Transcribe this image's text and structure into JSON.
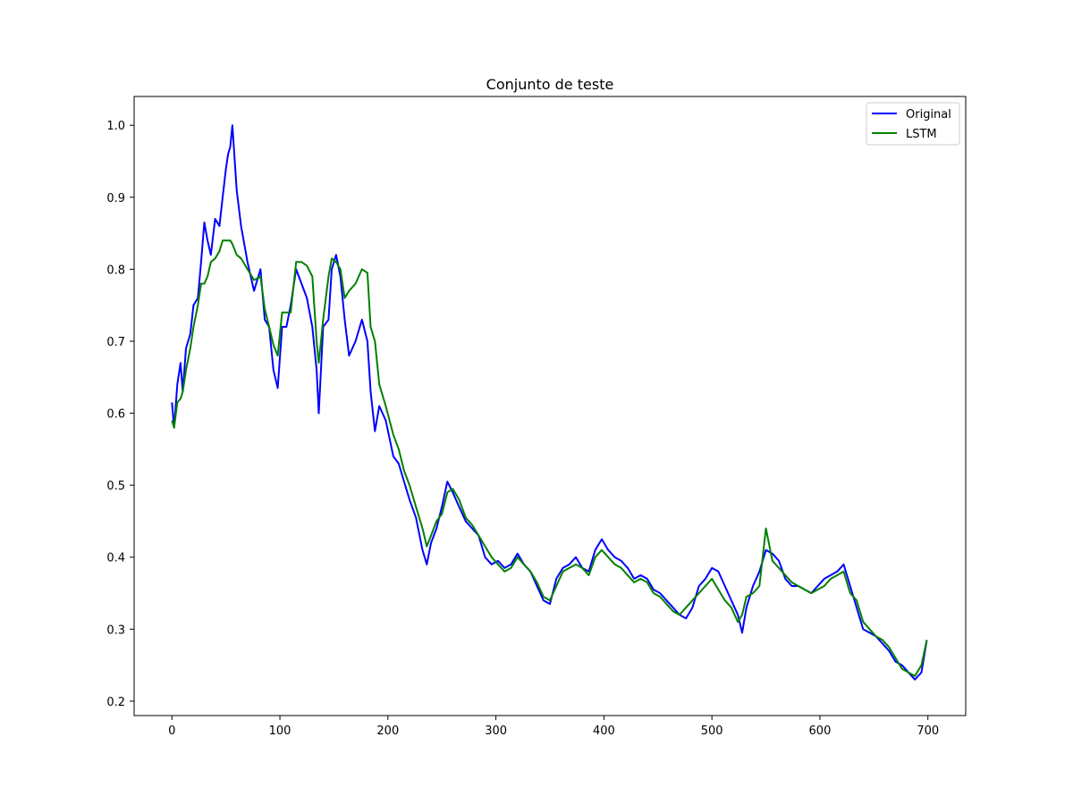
{
  "chart_data": {
    "type": "line",
    "title": "Conjunto de teste",
    "xlabel": "",
    "ylabel": "",
    "xlim": [
      -35,
      735
    ],
    "ylim": [
      0.18,
      1.04
    ],
    "xticks": [
      0,
      100,
      200,
      300,
      400,
      500,
      600,
      700
    ],
    "yticks": [
      0.2,
      0.3,
      0.4,
      0.5,
      0.6,
      0.7,
      0.8,
      0.9,
      1.0
    ],
    "xtick_labels": [
      "0",
      "100",
      "200",
      "300",
      "400",
      "500",
      "600",
      "700"
    ],
    "ytick_labels": [
      "0.2",
      "0.3",
      "0.4",
      "0.5",
      "0.6",
      "0.7",
      "0.8",
      "0.9",
      "1.0"
    ],
    "grid": false,
    "legend_position": "top-right",
    "series": [
      {
        "name": "Original",
        "color": "#0000ff",
        "x": [
          0,
          2,
          5,
          8,
          10,
          13,
          17,
          20,
          24,
          27,
          30,
          33,
          36,
          40,
          44,
          47,
          50,
          52,
          54,
          56,
          60,
          64,
          70,
          76,
          82,
          86,
          90,
          94,
          98,
          102,
          106,
          110,
          115,
          120,
          125,
          130,
          134,
          136,
          140,
          145,
          148,
          152,
          156,
          160,
          164,
          170,
          176,
          181,
          184,
          188,
          192,
          198,
          205,
          210,
          215,
          220,
          226,
          232,
          236,
          240,
          245,
          250,
          255,
          260,
          266,
          272,
          278,
          284,
          290,
          296,
          302,
          308,
          314,
          320,
          326,
          332,
          338,
          344,
          350,
          356,
          362,
          368,
          374,
          380,
          386,
          392,
          398,
          404,
          410,
          416,
          422,
          428,
          434,
          440,
          446,
          452,
          458,
          464,
          470,
          476,
          482,
          488,
          494,
          500,
          506,
          512,
          518,
          524,
          528,
          532,
          538,
          544,
          550,
          556,
          562,
          568,
          574,
          580,
          586,
          592,
          598,
          604,
          610,
          616,
          622,
          628,
          634,
          640,
          646,
          652,
          658,
          664,
          670,
          676,
          682,
          688,
          694,
          699
        ],
        "y": [
          0.615,
          0.58,
          0.64,
          0.67,
          0.63,
          0.69,
          0.71,
          0.75,
          0.76,
          0.81,
          0.865,
          0.84,
          0.82,
          0.87,
          0.86,
          0.9,
          0.94,
          0.96,
          0.97,
          1.0,
          0.91,
          0.86,
          0.81,
          0.77,
          0.8,
          0.73,
          0.72,
          0.66,
          0.635,
          0.72,
          0.72,
          0.75,
          0.8,
          0.78,
          0.76,
          0.72,
          0.66,
          0.6,
          0.72,
          0.73,
          0.8,
          0.82,
          0.79,
          0.73,
          0.68,
          0.7,
          0.73,
          0.7,
          0.63,
          0.575,
          0.61,
          0.59,
          0.54,
          0.53,
          0.505,
          0.48,
          0.455,
          0.41,
          0.39,
          0.42,
          0.44,
          0.47,
          0.505,
          0.49,
          0.47,
          0.45,
          0.44,
          0.43,
          0.4,
          0.39,
          0.395,
          0.385,
          0.39,
          0.405,
          0.39,
          0.38,
          0.36,
          0.34,
          0.335,
          0.37,
          0.385,
          0.39,
          0.4,
          0.385,
          0.38,
          0.41,
          0.425,
          0.41,
          0.4,
          0.395,
          0.385,
          0.37,
          0.375,
          0.37,
          0.355,
          0.35,
          0.34,
          0.33,
          0.32,
          0.315,
          0.33,
          0.36,
          0.37,
          0.385,
          0.38,
          0.36,
          0.34,
          0.32,
          0.295,
          0.33,
          0.36,
          0.38,
          0.41,
          0.405,
          0.395,
          0.37,
          0.36,
          0.36,
          0.355,
          0.35,
          0.36,
          0.37,
          0.375,
          0.38,
          0.39,
          0.36,
          0.33,
          0.3,
          0.295,
          0.29,
          0.28,
          0.27,
          0.255,
          0.25,
          0.24,
          0.23,
          0.24,
          0.285
        ]
      },
      {
        "name": "LSTM",
        "color": "#008000",
        "x": [
          0,
          2,
          5,
          8,
          10,
          13,
          17,
          20,
          24,
          27,
          30,
          33,
          36,
          40,
          44,
          47,
          50,
          52,
          54,
          56,
          60,
          64,
          70,
          76,
          82,
          86,
          90,
          94,
          98,
          102,
          106,
          110,
          115,
          120,
          125,
          130,
          134,
          136,
          140,
          145,
          148,
          152,
          156,
          160,
          164,
          170,
          176,
          181,
          184,
          188,
          192,
          198,
          205,
          210,
          215,
          220,
          226,
          232,
          236,
          240,
          245,
          250,
          255,
          260,
          266,
          272,
          278,
          284,
          290,
          296,
          302,
          308,
          314,
          320,
          326,
          332,
          338,
          344,
          350,
          356,
          362,
          368,
          374,
          380,
          386,
          392,
          398,
          404,
          410,
          416,
          422,
          428,
          434,
          440,
          446,
          452,
          458,
          464,
          470,
          476,
          482,
          488,
          494,
          500,
          506,
          512,
          518,
          524,
          528,
          532,
          538,
          544,
          550,
          556,
          562,
          568,
          574,
          580,
          586,
          592,
          598,
          604,
          610,
          616,
          622,
          628,
          634,
          640,
          646,
          652,
          658,
          664,
          670,
          676,
          682,
          688,
          694,
          699
        ],
        "y": [
          0.59,
          0.58,
          0.615,
          0.62,
          0.63,
          0.66,
          0.69,
          0.72,
          0.75,
          0.78,
          0.78,
          0.79,
          0.81,
          0.815,
          0.825,
          0.84,
          0.84,
          0.84,
          0.84,
          0.835,
          0.82,
          0.815,
          0.8,
          0.785,
          0.79,
          0.745,
          0.72,
          0.695,
          0.68,
          0.74,
          0.74,
          0.74,
          0.81,
          0.81,
          0.805,
          0.79,
          0.7,
          0.67,
          0.73,
          0.79,
          0.815,
          0.81,
          0.8,
          0.76,
          0.77,
          0.78,
          0.8,
          0.795,
          0.72,
          0.7,
          0.64,
          0.61,
          0.57,
          0.55,
          0.52,
          0.5,
          0.47,
          0.44,
          0.415,
          0.43,
          0.45,
          0.46,
          0.49,
          0.495,
          0.48,
          0.455,
          0.445,
          0.43,
          0.415,
          0.4,
          0.39,
          0.38,
          0.385,
          0.4,
          0.39,
          0.38,
          0.365,
          0.345,
          0.34,
          0.36,
          0.38,
          0.385,
          0.39,
          0.385,
          0.375,
          0.4,
          0.41,
          0.4,
          0.39,
          0.385,
          0.375,
          0.365,
          0.37,
          0.365,
          0.35,
          0.345,
          0.335,
          0.325,
          0.32,
          0.33,
          0.34,
          0.35,
          0.36,
          0.37,
          0.355,
          0.34,
          0.33,
          0.31,
          0.32,
          0.345,
          0.35,
          0.36,
          0.44,
          0.395,
          0.385,
          0.375,
          0.365,
          0.36,
          0.355,
          0.35,
          0.355,
          0.36,
          0.37,
          0.375,
          0.38,
          0.35,
          0.34,
          0.31,
          0.3,
          0.29,
          0.285,
          0.275,
          0.26,
          0.245,
          0.24,
          0.235,
          0.25,
          0.285
        ]
      }
    ]
  }
}
